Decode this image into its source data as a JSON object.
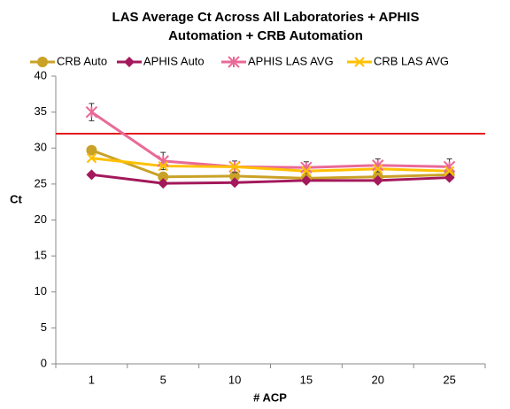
{
  "chart_data": {
    "type": "line",
    "title": [
      "LAS Average Ct Across All Laboratories + APHIS",
      "Automation + CRB Automation"
    ],
    "x_label": "# ACP",
    "y_label": "Ct",
    "categories": [
      "1",
      "5",
      "10",
      "15",
      "20",
      "25"
    ],
    "series": [
      {
        "name": "CRB Auto",
        "color": "#C9A227",
        "marker": "circle",
        "values": [
          29.7,
          26.0,
          26.1,
          25.8,
          26.0,
          26.3
        ]
      },
      {
        "name": "APHIS Auto",
        "color": "#A3195B",
        "marker": "diamond",
        "values": [
          26.3,
          25.1,
          25.2,
          25.5,
          25.5,
          25.9
        ]
      },
      {
        "name": "APHIS LAS AVG",
        "color": "#E96A98",
        "marker": "star",
        "values": [
          35.0,
          28.2,
          27.4,
          27.3,
          27.6,
          27.4
        ],
        "errors": [
          1.2,
          1.2,
          0.8,
          0.8,
          0.9,
          1.1
        ]
      },
      {
        "name": "CRB LAS AVG",
        "color": "#FFC000",
        "marker": "x",
        "values": [
          28.6,
          27.5,
          27.4,
          26.8,
          27.1,
          26.8
        ]
      }
    ],
    "reference_line": {
      "value": 32,
      "color": "#E31A1C"
    },
    "ylim": [
      0,
      40
    ],
    "yticks": [
      0,
      5,
      10,
      15,
      20,
      25,
      30,
      35,
      40
    ],
    "legend": "top",
    "grid": false
  }
}
